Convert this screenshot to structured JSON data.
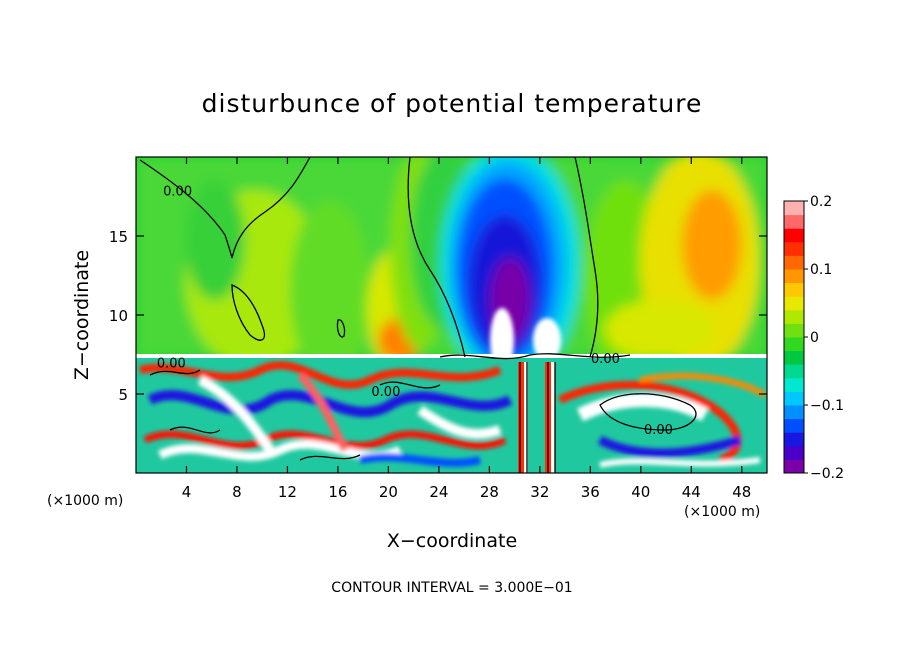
{
  "chart_data": {
    "type": "heatmap",
    "title": "disturbunce of potential temperature",
    "xlabel": "X−coordinate",
    "ylabel": "Z−coordinate",
    "x_unit_left": "(×1000 m)",
    "x_unit_right": "(×1000 m)",
    "xlim": [
      0,
      50
    ],
    "ylim": [
      0,
      20
    ],
    "x_ticks": [
      4,
      8,
      12,
      16,
      20,
      24,
      28,
      32,
      36,
      40,
      44,
      48
    ],
    "x_tick_labels": [
      "4",
      "8",
      "12",
      "16",
      "20",
      "24",
      "28",
      "32",
      "36",
      "40",
      "44",
      "48"
    ],
    "y_ticks": [
      5,
      10,
      15
    ],
    "y_tick_labels": [
      "5",
      "10",
      "15"
    ],
    "colorbar": {
      "range": [
        -0.2,
        0.2
      ],
      "ticks": [
        0.2,
        0.1,
        0,
        -0.1,
        -0.2
      ],
      "tick_labels": [
        "0.2",
        "0.1",
        "0",
        "−0.1",
        "−0.2"
      ],
      "colors": [
        "#7b00a8",
        "#4a00c8",
        "#1a18e0",
        "#0050ff",
        "#0090ff",
        "#00c8ff",
        "#00e8d0",
        "#00d890",
        "#00c840",
        "#30d820",
        "#70e010",
        "#b0e800",
        "#e8e800",
        "#ffc800",
        "#ff9800",
        "#ff6800",
        "#ff3000",
        "#ff0000",
        "#ff6868",
        "#ffb0b0"
      ]
    },
    "contour_labels": [
      {
        "text": "0.00",
        "x": 3.3,
        "y": 17.7
      },
      {
        "text": "0.00",
        "x": 2.8,
        "y": 6.8
      },
      {
        "text": "0.00",
        "x": 19.8,
        "y": 5.0
      },
      {
        "text": "0.00",
        "x": 37.2,
        "y": 7.1
      },
      {
        "text": "0.00",
        "x": 41.4,
        "y": 2.6
      }
    ],
    "footer": "CONTOUR INTERVAL = 3.000E−01",
    "grid": false
  }
}
